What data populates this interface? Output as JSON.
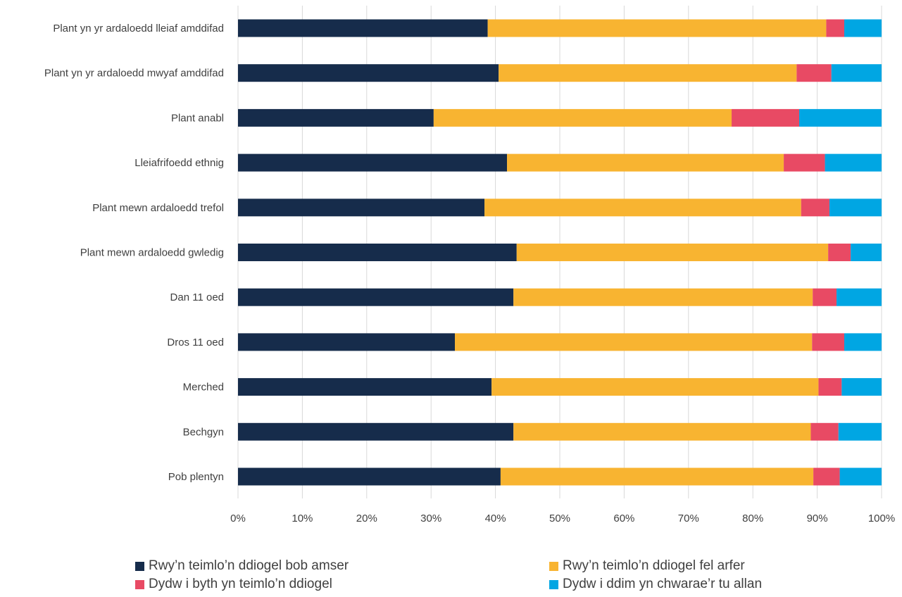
{
  "chart_data": {
    "type": "bar",
    "orientation": "horizontal",
    "stacked": "percent",
    "categories": [
      "Plant yn yr ardaloedd lleiaf amddifad",
      "Plant yn yr ardaloedd mwyaf amddifad",
      "Plant anabl",
      "Lleiafrifoedd ethnig",
      "Plant mewn ardaloedd trefol",
      "Plant mewn ardaloedd gwledig",
      "Dan 11 oed",
      "Dros 11 oed",
      "Merched",
      "Bechgyn",
      "Pob plentyn"
    ],
    "series": [
      {
        "name": "Rwy’n teimlo’n ddiogel bob amser",
        "color": "#162c4b",
        "values": [
          38.8,
          40.5,
          30.4,
          41.8,
          38.3,
          43.3,
          42.8,
          33.7,
          39.4,
          42.8,
          40.8
        ]
      },
      {
        "name": "Rwy’n teimlo’n ddiogel fel arfer",
        "color": "#f8b431",
        "values": [
          52.6,
          46.3,
          46.3,
          43.0,
          49.2,
          48.4,
          46.5,
          55.5,
          50.8,
          46.2,
          48.6
        ]
      },
      {
        "name": "Dydw i byth yn teimlo’n ddiogel",
        "color": "#e84a64",
        "values": [
          2.8,
          5.4,
          10.5,
          6.4,
          4.4,
          3.5,
          3.7,
          5.0,
          3.6,
          4.3,
          4.1
        ]
      },
      {
        "name": "Dydw i ddim yn chwarae’r tu allan",
        "color": "#00a6e3",
        "values": [
          5.8,
          7.8,
          12.8,
          8.8,
          8.1,
          4.8,
          7.0,
          5.8,
          6.2,
          6.7,
          6.5
        ]
      }
    ],
    "xlim": [
      0,
      100
    ],
    "xticks": [
      "0%",
      "10%",
      "20%",
      "30%",
      "40%",
      "50%",
      "60%",
      "70%",
      "80%",
      "90%",
      "100%"
    ],
    "grid": true,
    "legend_position": "bottom",
    "title": "",
    "xlabel": "",
    "ylabel": ""
  }
}
